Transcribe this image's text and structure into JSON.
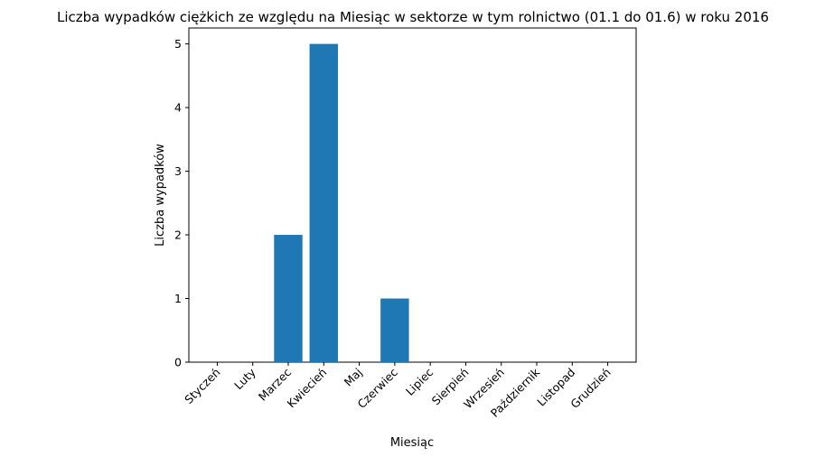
{
  "chart_data": {
    "type": "bar",
    "title": "Liczba wypadków ciężkich ze względu na Miesiąc w sektorze    w tym rolnictwo (01.1 do 01.6) w roku 2016",
    "xlabel": "Miesiąc",
    "ylabel": "Liczba wypadków",
    "categories": [
      "Styczeń",
      "Luty",
      "Marzec",
      "Kwiecień",
      "Maj",
      "Czerwiec",
      "Lipiec",
      "Sierpień",
      "Wrzesień",
      "Październik",
      "Listopad",
      "Grudzień"
    ],
    "values": [
      0,
      0,
      2,
      5,
      0,
      1,
      0,
      0,
      0,
      0,
      0,
      0
    ],
    "yticks": [
      0,
      1,
      2,
      3,
      4,
      5
    ],
    "ylim": [
      0,
      5.25
    ],
    "bar_color": "#1f77b4",
    "grid": false,
    "legend": "none"
  }
}
